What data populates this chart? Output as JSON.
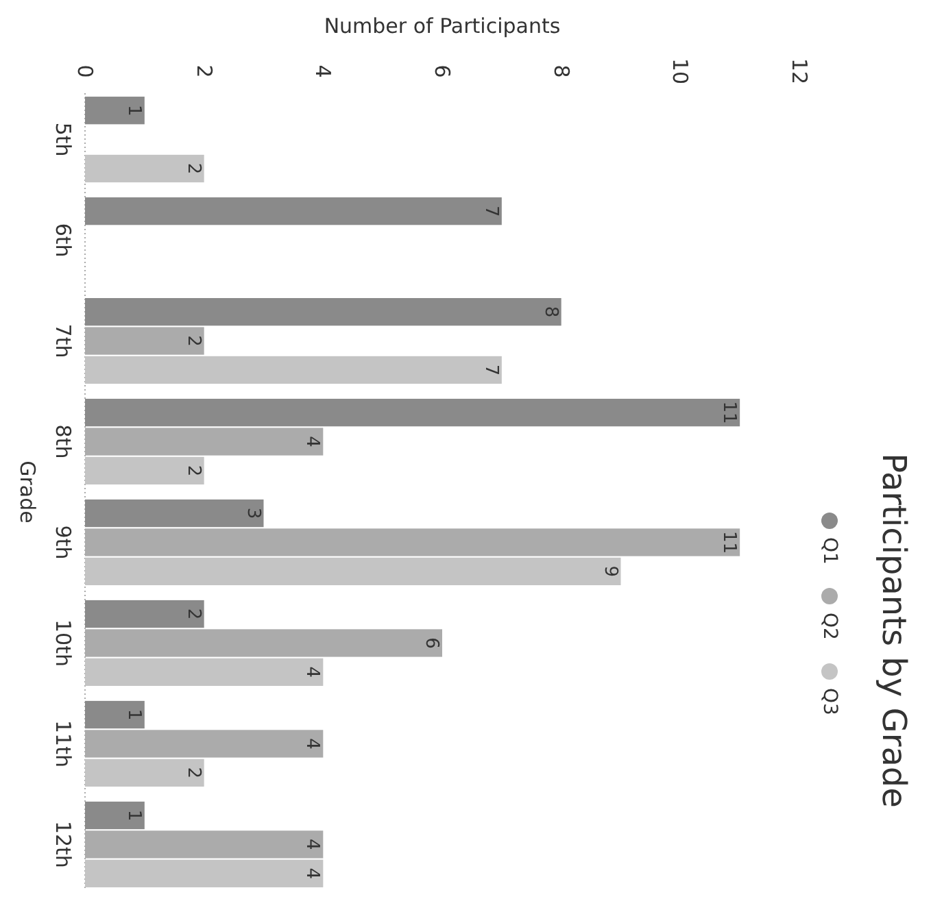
{
  "chart_data": {
    "type": "bar",
    "orientation": "horizontal",
    "title": "Participants by Grade",
    "xlabel": "Number of Participants",
    "ylabel": "Grade",
    "categories": [
      "5th",
      "6th",
      "7th",
      "8th",
      "9th",
      "10th",
      "11th",
      "12th"
    ],
    "series": [
      {
        "name": "Q1",
        "color": "#8a8a8a",
        "values": [
          1,
          7,
          8,
          11,
          3,
          2,
          1,
          1
        ]
      },
      {
        "name": "Q2",
        "color": "#ababab",
        "values": [
          null,
          null,
          2,
          4,
          11,
          6,
          4,
          4
        ]
      },
      {
        "name": "Q3",
        "color": "#c4c4c4",
        "values": [
          2,
          null,
          7,
          2,
          9,
          4,
          2,
          4
        ]
      }
    ],
    "xlim": [
      0,
      12
    ],
    "xticks": [
      0,
      2,
      4,
      6,
      8,
      10,
      12
    ],
    "data_labels": true,
    "legend": "right",
    "grid": false
  }
}
